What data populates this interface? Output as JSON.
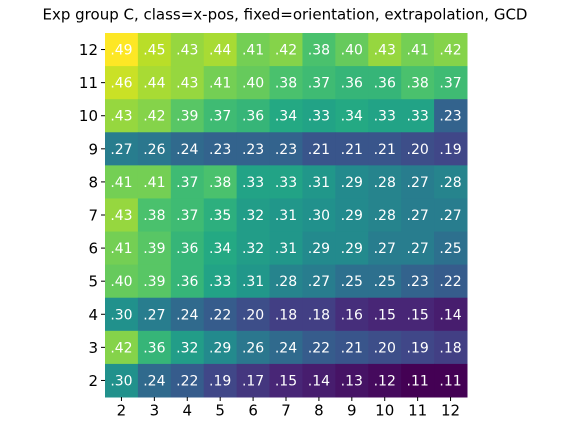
{
  "chart_data": {
    "type": "heatmap",
    "title": "Exp group C, class=x-pos, fixed=orientation, extrapolation, GCD",
    "colormap": "viridis",
    "x": [
      2,
      3,
      4,
      5,
      6,
      7,
      8,
      9,
      10,
      11,
      12
    ],
    "y": [
      12,
      11,
      10,
      9,
      8,
      7,
      6,
      5,
      4,
      3,
      2
    ],
    "values": [
      [
        0.49,
        0.45,
        0.43,
        0.44,
        0.41,
        0.42,
        0.38,
        0.4,
        0.43,
        0.41,
        0.42
      ],
      [
        0.46,
        0.44,
        0.43,
        0.41,
        0.4,
        0.38,
        0.37,
        0.36,
        0.36,
        0.38,
        0.37
      ],
      [
        0.43,
        0.42,
        0.39,
        0.37,
        0.36,
        0.34,
        0.33,
        0.34,
        0.33,
        0.33,
        0.23
      ],
      [
        0.27,
        0.26,
        0.24,
        0.23,
        0.23,
        0.23,
        0.21,
        0.21,
        0.21,
        0.2,
        0.19
      ],
      [
        0.41,
        0.41,
        0.37,
        0.38,
        0.33,
        0.33,
        0.31,
        0.29,
        0.28,
        0.27,
        0.28
      ],
      [
        0.43,
        0.38,
        0.37,
        0.35,
        0.32,
        0.31,
        0.3,
        0.29,
        0.28,
        0.27,
        0.27
      ],
      [
        0.41,
        0.39,
        0.36,
        0.34,
        0.32,
        0.31,
        0.29,
        0.29,
        0.27,
        0.27,
        0.25
      ],
      [
        0.4,
        0.39,
        0.36,
        0.33,
        0.31,
        0.28,
        0.27,
        0.25,
        0.25,
        0.23,
        0.22
      ],
      [
        0.3,
        0.27,
        0.24,
        0.22,
        0.2,
        0.18,
        0.18,
        0.16,
        0.15,
        0.15,
        0.14
      ],
      [
        0.42,
        0.36,
        0.32,
        0.29,
        0.26,
        0.24,
        0.22,
        0.21,
        0.2,
        0.19,
        0.18
      ],
      [
        0.3,
        0.24,
        0.22,
        0.19,
        0.17,
        0.15,
        0.14,
        0.13,
        0.12,
        0.11,
        0.11
      ]
    ],
    "value_labels": [
      [
        ".49",
        ".45",
        ".43",
        ".44",
        ".41",
        ".42",
        ".38",
        ".40",
        ".43",
        ".41",
        ".42"
      ],
      [
        ".46",
        ".44",
        ".43",
        ".41",
        ".40",
        ".38",
        ".37",
        ".36",
        ".36",
        ".38",
        ".37"
      ],
      [
        ".43",
        ".42",
        ".39",
        ".37",
        ".36",
        ".34",
        ".33",
        ".34",
        ".33",
        ".33",
        ".23"
      ],
      [
        ".27",
        ".26",
        ".24",
        ".23",
        ".23",
        ".23",
        ".21",
        ".21",
        ".21",
        ".20",
        ".19"
      ],
      [
        ".41",
        ".41",
        ".37",
        ".38",
        ".33",
        ".33",
        ".31",
        ".29",
        ".28",
        ".27",
        ".28"
      ],
      [
        ".43",
        ".38",
        ".37",
        ".35",
        ".32",
        ".31",
        ".30",
        ".29",
        ".28",
        ".27",
        ".27"
      ],
      [
        ".41",
        ".39",
        ".36",
        ".34",
        ".32",
        ".31",
        ".29",
        ".29",
        ".27",
        ".27",
        ".25"
      ],
      [
        ".40",
        ".39",
        ".36",
        ".33",
        ".31",
        ".28",
        ".27",
        ".25",
        ".25",
        ".23",
        ".22"
      ],
      [
        ".30",
        ".27",
        ".24",
        ".22",
        ".20",
        ".18",
        ".18",
        ".16",
        ".15",
        ".15",
        ".14"
      ],
      [
        ".42",
        ".36",
        ".32",
        ".29",
        ".26",
        ".24",
        ".22",
        ".21",
        ".20",
        ".19",
        ".18"
      ],
      [
        ".30",
        ".24",
        ".22",
        ".19",
        ".17",
        ".15",
        ".14",
        ".13",
        ".12",
        ".11",
        ".11"
      ]
    ]
  }
}
